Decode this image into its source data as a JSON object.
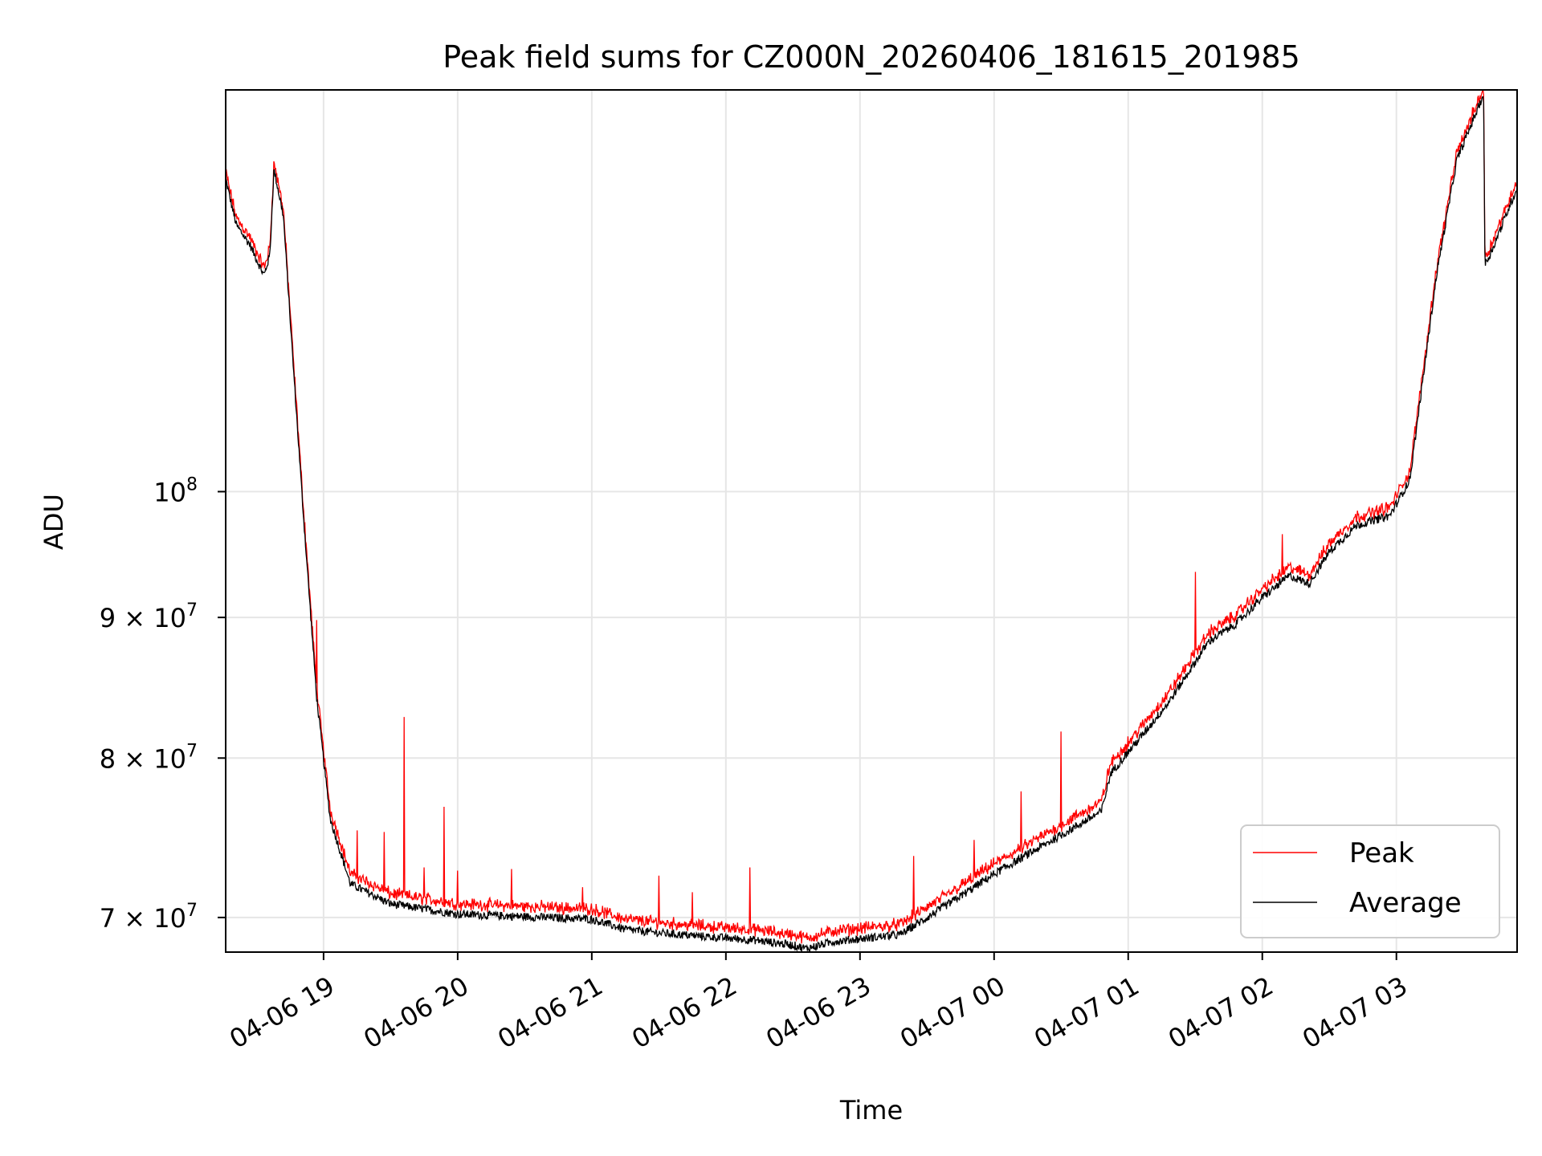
{
  "chart_data": {
    "type": "line",
    "title": "Peak field sums for CZ000N_20260406_181615_201985",
    "xlabel": "Time",
    "ylabel": "ADU",
    "yscale": "log",
    "xlim_hours": [
      18.27,
      27.9
    ],
    "ylim": [
      68000000,
      140000000
    ],
    "grid": true,
    "legend_position": "lower-right",
    "x_ticks": [
      {
        "label": "04-06 19",
        "hour": 19
      },
      {
        "label": "04-06 20",
        "hour": 20
      },
      {
        "label": "04-06 21",
        "hour": 21
      },
      {
        "label": "04-06 22",
        "hour": 22
      },
      {
        "label": "04-06 23",
        "hour": 23
      },
      {
        "label": "04-07 00",
        "hour": 24
      },
      {
        "label": "04-07 01",
        "hour": 25
      },
      {
        "label": "04-07 02",
        "hour": 26
      },
      {
        "label": "04-07 03",
        "hour": 27
      }
    ],
    "y_ticks": [
      {
        "label": "7 × 10",
        "exp": "7",
        "value": 70000000
      },
      {
        "label": "8 × 10",
        "exp": "7",
        "value": 80000000
      },
      {
        "label": "9 × 10",
        "exp": "7",
        "value": 90000000
      },
      {
        "label": "10",
        "exp": "8",
        "value": 100000000
      }
    ],
    "series": [
      {
        "name": "Peak",
        "color": "#ff0000",
        "offset": 400000,
        "spikes": [
          [
            18.95,
            89800000
          ],
          [
            19.05,
            76500000
          ],
          [
            19.25,
            75300000
          ],
          [
            19.45,
            75200000
          ],
          [
            19.6,
            82800000
          ],
          [
            19.75,
            73000000
          ],
          [
            19.9,
            76800000
          ],
          [
            20.0,
            72800000
          ],
          [
            20.4,
            72900000
          ],
          [
            20.93,
            71800000
          ],
          [
            21.5,
            72500000
          ],
          [
            21.75,
            71500000
          ],
          [
            22.18,
            73000000
          ],
          [
            23.4,
            73700000
          ],
          [
            23.85,
            74700000
          ],
          [
            24.2,
            77800000
          ],
          [
            24.5,
            81800000
          ],
          [
            24.85,
            79300000
          ],
          [
            25.5,
            93500000
          ],
          [
            26.15,
            96500000
          ]
        ]
      },
      {
        "name": "Average",
        "color": "#000000",
        "offset": 0
      }
    ],
    "avg_points": [
      [
        18.27,
        130000000
      ],
      [
        18.3,
        128000000
      ],
      [
        18.35,
        125000000
      ],
      [
        18.45,
        123000000
      ],
      [
        18.55,
        120000000
      ],
      [
        18.56,
        120000000
      ],
      [
        18.6,
        122000000
      ],
      [
        18.63,
        131000000
      ],
      [
        18.7,
        126000000
      ],
      [
        18.78,
        110000000
      ],
      [
        18.85,
        98000000
      ],
      [
        18.95,
        84000000
      ],
      [
        19.05,
        76000000
      ],
      [
        19.2,
        72000000
      ],
      [
        19.5,
        70800000
      ],
      [
        20.0,
        70200000
      ],
      [
        21.0,
        69900000
      ],
      [
        21.25,
        69300000
      ],
      [
        21.5,
        69100000
      ],
      [
        22.0,
        68800000
      ],
      [
        22.2,
        68700000
      ],
      [
        22.5,
        68400000
      ],
      [
        22.6,
        68200000
      ],
      [
        22.8,
        68600000
      ],
      [
        23.3,
        69000000
      ],
      [
        23.7,
        71000000
      ],
      [
        24.0,
        72600000
      ],
      [
        24.5,
        75000000
      ],
      [
        24.8,
        76500000
      ],
      [
        24.87,
        79000000
      ],
      [
        25.1,
        81500000
      ],
      [
        25.3,
        83800000
      ],
      [
        25.6,
        88200000
      ],
      [
        25.8,
        89500000
      ],
      [
        26.0,
        91500000
      ],
      [
        26.2,
        93200000
      ],
      [
        26.35,
        92600000
      ],
      [
        26.5,
        95100000
      ],
      [
        26.7,
        97200000
      ],
      [
        26.95,
        98000000
      ],
      [
        27.1,
        101000000
      ],
      [
        27.3,
        120000000
      ],
      [
        27.45,
        132000000
      ],
      [
        27.65,
        139500000
      ],
      [
        27.66,
        121000000
      ],
      [
        27.7,
        122000000
      ],
      [
        27.9,
        129000000
      ]
    ]
  }
}
